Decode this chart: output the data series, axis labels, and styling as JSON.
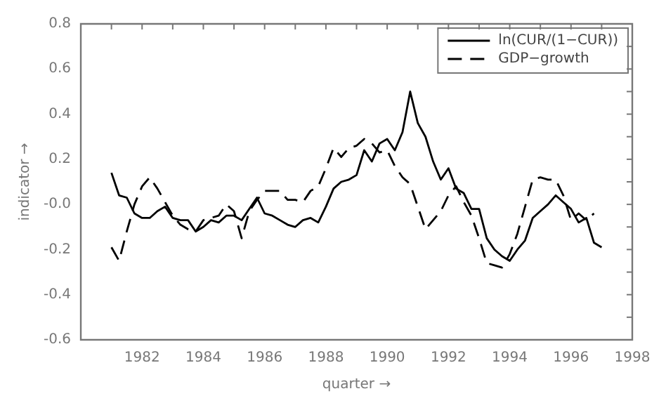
{
  "chart_data": {
    "type": "line",
    "xlabel": "quarter →",
    "ylabel": "indicator →",
    "x": [
      1981,
      1981.25,
      1981.5,
      1981.75,
      1982,
      1982.25,
      1982.5,
      1982.75,
      1983,
      1983.25,
      1983.5,
      1983.75,
      1984,
      1984.25,
      1984.5,
      1984.75,
      1985,
      1985.25,
      1985.5,
      1985.75,
      1986,
      1986.25,
      1986.5,
      1986.75,
      1987,
      1987.25,
      1987.5,
      1987.75,
      1988,
      1988.25,
      1988.5,
      1988.75,
      1989,
      1989.25,
      1989.5,
      1989.75,
      1990,
      1990.25,
      1990.5,
      1990.75,
      1991,
      1991.25,
      1991.5,
      1991.75,
      1992,
      1992.25,
      1992.5,
      1992.75,
      1993,
      1993.25,
      1993.5,
      1993.75,
      1994,
      1994.25,
      1994.5,
      1994.75,
      1995,
      1995.25,
      1995.5,
      1995.75,
      1996,
      1996.25,
      1996.5,
      1996.75,
      1997
    ],
    "series": [
      {
        "name": "ln(CUR/(1−CUR))",
        "color": "#000000",
        "line_style": "solid",
        "values": [
          0.14,
          0.04,
          0.03,
          -0.04,
          -0.06,
          -0.06,
          -0.03,
          -0.01,
          -0.06,
          -0.07,
          -0.07,
          -0.12,
          -0.1,
          -0.07,
          -0.08,
          -0.05,
          -0.05,
          -0.07,
          -0.02,
          0.03,
          -0.04,
          -0.05,
          -0.07,
          -0.09,
          -0.1,
          -0.07,
          -0.06,
          -0.08,
          -0.01,
          0.07,
          0.1,
          0.11,
          0.13,
          0.24,
          0.19,
          0.27,
          0.29,
          0.24,
          0.32,
          0.5,
          0.36,
          0.3,
          0.19,
          0.11,
          0.16,
          0.07,
          0.05,
          -0.02,
          -0.02,
          -0.15,
          -0.2,
          -0.23,
          -0.25,
          -0.2,
          -0.16,
          -0.06,
          -0.03,
          0.0,
          0.04,
          0.01,
          -0.02,
          -0.08,
          -0.06,
          -0.17,
          -0.19
        ]
      },
      {
        "name": "GDP−growth",
        "color": "#000000",
        "line_style": "dashed",
        "values": [
          -0.19,
          -0.25,
          -0.12,
          0.0,
          0.08,
          0.12,
          0.07,
          0.01,
          -0.05,
          -0.09,
          -0.11,
          -0.12,
          -0.07,
          -0.06,
          -0.05,
          0.0,
          -0.03,
          -0.15,
          -0.03,
          0.02,
          0.06,
          0.06,
          0.06,
          0.02,
          0.02,
          0.01,
          0.06,
          0.08,
          0.16,
          0.25,
          0.21,
          0.25,
          0.26,
          0.29,
          0.27,
          0.23,
          0.24,
          0.17,
          0.12,
          0.09,
          -0.01,
          -0.11,
          -0.07,
          -0.03,
          0.04,
          0.08,
          0.01,
          -0.05,
          -0.15,
          -0.26,
          -0.27,
          -0.28,
          -0.22,
          -0.13,
          -0.01,
          0.11,
          0.12,
          0.11,
          0.11,
          0.04,
          -0.07,
          -0.04,
          -0.07,
          -0.04,
          null
        ]
      }
    ],
    "xlim": [
      1980,
      1998
    ],
    "xticks": [
      {
        "value": 1981,
        "label": null
      },
      1982,
      {
        "value": 1983,
        "label": null
      },
      1984,
      {
        "value": 1985,
        "label": null
      },
      1986,
      {
        "value": 1987,
        "label": null
      },
      1988,
      {
        "value": 1989,
        "label": null
      },
      1990,
      {
        "value": 1991,
        "label": null
      },
      1992,
      {
        "value": 1993,
        "label": null
      },
      1994,
      {
        "value": 1995,
        "label": null
      },
      1996,
      {
        "value": 1997,
        "label": null
      },
      1998
    ],
    "ylim": [
      -0.6,
      0.8
    ],
    "yticks": [
      -0.6,
      {
        "value": -0.5,
        "label": null
      },
      -0.4,
      {
        "value": -0.3,
        "label": null
      },
      -0.2,
      {
        "value": -0.1,
        "label": null
      },
      {
        "value": 0,
        "label": "-0.0"
      },
      {
        "value": 0.1,
        "label": null
      },
      0.2,
      {
        "value": 0.3,
        "label": null
      },
      0.4,
      {
        "value": 0.5,
        "label": null
      },
      0.6,
      {
        "value": 0.7,
        "label": null
      },
      0.8
    ],
    "grid": false,
    "legend": "top right",
    "marker": "none"
  }
}
